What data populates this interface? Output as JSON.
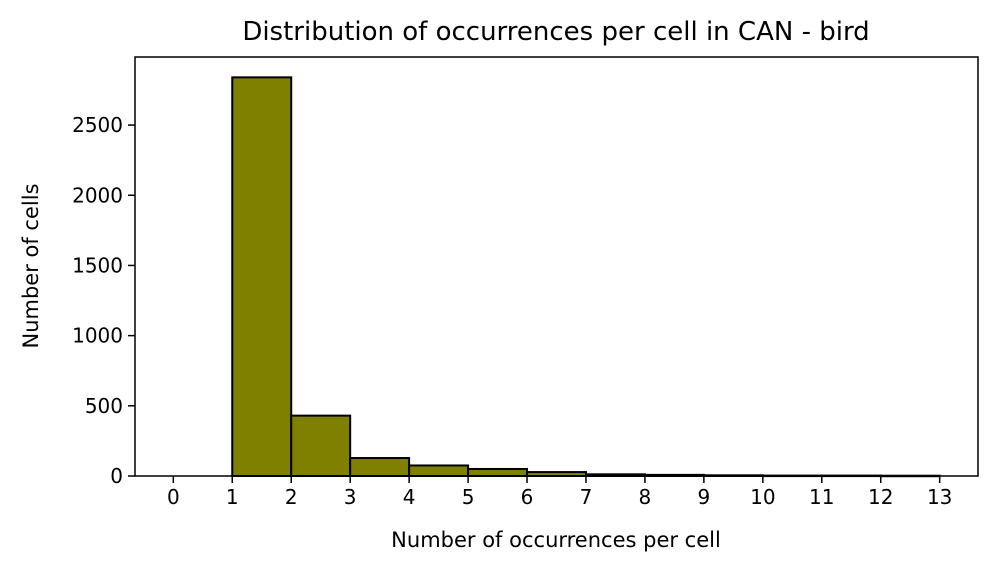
{
  "chart_data": {
    "type": "bar",
    "title": "Distribution of occurrences per cell in CAN - bird",
    "xlabel": "Number of occurrences per cell",
    "ylabel": "Number of cells",
    "bins": [
      {
        "x0": 1,
        "x1": 2,
        "value": 2840
      },
      {
        "x0": 2,
        "x1": 3,
        "value": 430
      },
      {
        "x0": 3,
        "x1": 4,
        "value": 128
      },
      {
        "x0": 4,
        "x1": 5,
        "value": 75
      },
      {
        "x0": 5,
        "x1": 6,
        "value": 50
      },
      {
        "x0": 6,
        "x1": 7,
        "value": 28
      },
      {
        "x0": 7,
        "x1": 8,
        "value": 12
      },
      {
        "x0": 8,
        "x1": 9,
        "value": 8
      },
      {
        "x0": 9,
        "x1": 10,
        "value": 5
      },
      {
        "x0": 10,
        "x1": 11,
        "value": 3
      },
      {
        "x0": 11,
        "x1": 12,
        "value": 3
      },
      {
        "x0": 12,
        "x1": 13,
        "value": 2
      }
    ],
    "xlim": [
      -0.65,
      13.65
    ],
    "ylim": [
      0,
      2985
    ],
    "xticks": [
      "0",
      "1",
      "2",
      "3",
      "4",
      "5",
      "6",
      "7",
      "8",
      "9",
      "10",
      "11",
      "12",
      "13"
    ],
    "yticks": [
      "0",
      "500",
      "1000",
      "1500",
      "2000",
      "2500"
    ],
    "bar_color": "#808000",
    "edge_color": "#000000",
    "grid": false,
    "legend": "none"
  }
}
